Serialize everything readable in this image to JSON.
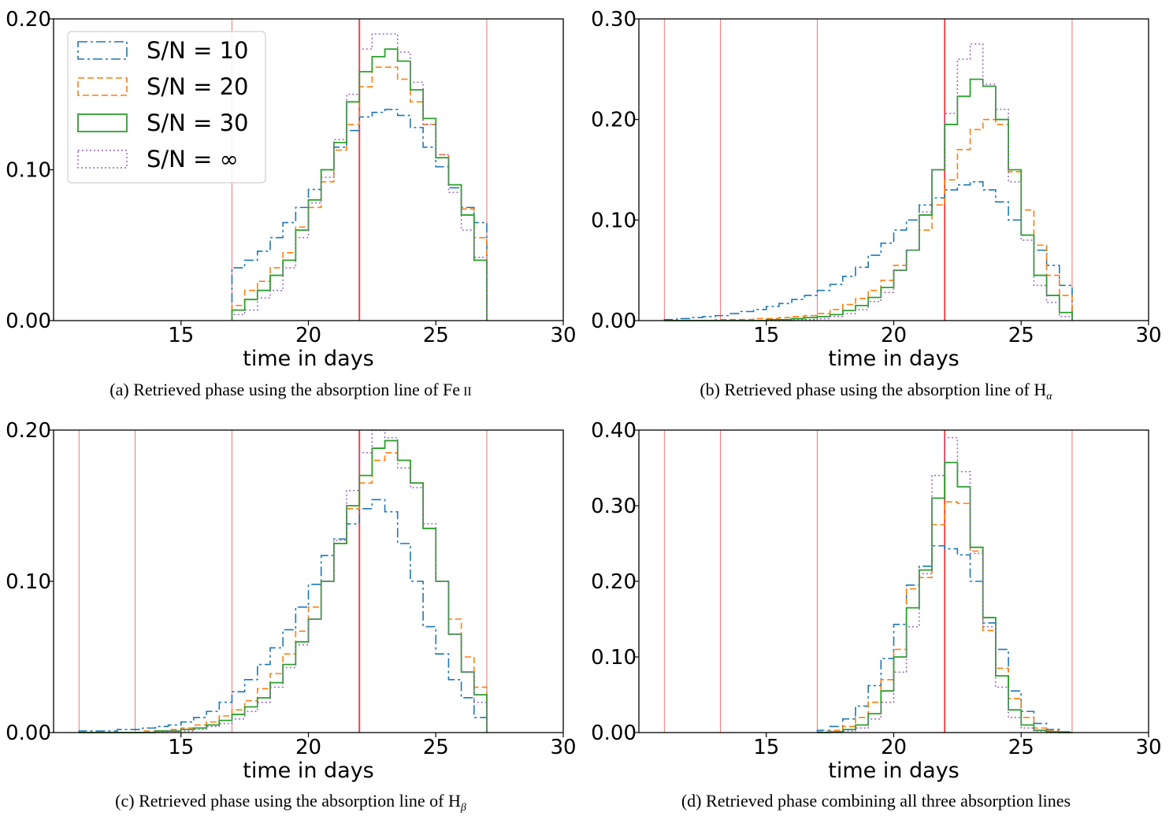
{
  "figure": {
    "captions": [
      {
        "tag": "(a)",
        "text": "Retrieved phase using the absorption line of Fe",
        "suffix": "II",
        "sub": ""
      },
      {
        "tag": "(b)",
        "text": "Retrieved phase using the absorption line of H",
        "suffix": "",
        "sub": "α"
      },
      {
        "tag": "(c)",
        "text": "Retrieved phase using the absorption line of H",
        "suffix": "",
        "sub": "β"
      },
      {
        "tag": "(d)",
        "text": "Retrieved phase combining all three absorption lines",
        "suffix": "",
        "sub": ""
      }
    ]
  },
  "colors": {
    "sn10": "#1f77b4",
    "sn20": "#ff7f0e",
    "sn30": "#2ca02c",
    "sninf": "#9467bd",
    "vline": "#f08080",
    "vline_main": "#e8474a"
  },
  "chart_data": [
    {
      "type": "bar",
      "subtype": "step-histogram",
      "xlabel": "time in days",
      "ylabel": "",
      "xlim": [
        10,
        30
      ],
      "ylim": [
        0,
        0.2
      ],
      "xticks": [
        "15",
        "20",
        "25",
        "30"
      ],
      "yticks": [
        "0.00",
        "0.10",
        "0.20"
      ],
      "legend": {
        "position": "top-left",
        "entries": [
          "S/N = 10",
          "S/N = 20",
          "S/N = 30",
          "S/N = ∞"
        ]
      },
      "vlines": [
        17,
        22,
        27
      ],
      "main_vline": 22,
      "bin_edges": [
        17,
        17.5,
        18,
        18.5,
        19,
        19.5,
        20,
        20.5,
        21,
        21.5,
        22,
        22.5,
        23,
        23.5,
        24,
        24.5,
        25,
        25.5,
        26,
        26.5,
        27
      ],
      "series": [
        {
          "name": "S/N = 10",
          "values": [
            0.035,
            0.04,
            0.046,
            0.055,
            0.065,
            0.075,
            0.087,
            0.1,
            0.115,
            0.126,
            0.135,
            0.138,
            0.14,
            0.136,
            0.128,
            0.115,
            0.102,
            0.088,
            0.075,
            0.065
          ]
        },
        {
          "name": "S/N = 20",
          "values": [
            0.01,
            0.02,
            0.026,
            0.035,
            0.045,
            0.062,
            0.075,
            0.092,
            0.113,
            0.13,
            0.155,
            0.168,
            0.168,
            0.16,
            0.145,
            0.13,
            0.11,
            0.09,
            0.074,
            0.055
          ]
        },
        {
          "name": "S/N = 30",
          "values": [
            0.007,
            0.014,
            0.02,
            0.03,
            0.04,
            0.06,
            0.08,
            0.1,
            0.118,
            0.145,
            0.165,
            0.175,
            0.18,
            0.172,
            0.153,
            0.134,
            0.108,
            0.09,
            0.07,
            0.04
          ]
        },
        {
          "name": "S/N = ∞",
          "values": [
            0.004,
            0.007,
            0.015,
            0.02,
            0.035,
            0.055,
            0.078,
            0.095,
            0.12,
            0.15,
            0.18,
            0.19,
            0.19,
            0.178,
            0.158,
            0.13,
            0.11,
            0.085,
            0.06,
            0.042
          ]
        }
      ]
    },
    {
      "type": "bar",
      "subtype": "step-histogram",
      "xlabel": "time in days",
      "ylabel": "",
      "xlim": [
        10,
        30
      ],
      "ylim": [
        0,
        0.3
      ],
      "xticks": [
        "15",
        "20",
        "25",
        "30"
      ],
      "yticks": [
        "0.00",
        "0.10",
        "0.20",
        "0.30"
      ],
      "vlines": [
        11,
        13.2,
        17,
        22,
        27
      ],
      "main_vline": 22,
      "bin_edges": [
        11,
        11.5,
        12,
        12.5,
        13,
        13.5,
        14,
        14.5,
        15,
        15.5,
        16,
        16.5,
        17,
        17.5,
        18,
        18.5,
        19,
        19.5,
        20,
        20.5,
        21,
        21.5,
        22,
        22.5,
        23,
        23.5,
        24,
        24.5,
        25,
        25.5,
        26,
        26.5,
        27
      ],
      "series": [
        {
          "name": "S/N = 10",
          "values": [
            0.001,
            0.002,
            0.003,
            0.004,
            0.005,
            0.007,
            0.009,
            0.011,
            0.014,
            0.017,
            0.021,
            0.025,
            0.03,
            0.036,
            0.044,
            0.053,
            0.065,
            0.077,
            0.09,
            0.1,
            0.115,
            0.122,
            0.13,
            0.135,
            0.138,
            0.13,
            0.118,
            0.1,
            0.085,
            0.07,
            0.055,
            0.035
          ]
        },
        {
          "name": "S/N = 20",
          "values": [
            0,
            0,
            0,
            0,
            0.001,
            0.001,
            0.001,
            0.002,
            0.002,
            0.003,
            0.004,
            0.005,
            0.007,
            0.011,
            0.016,
            0.022,
            0.03,
            0.04,
            0.055,
            0.07,
            0.09,
            0.115,
            0.14,
            0.17,
            0.19,
            0.2,
            0.195,
            0.148,
            0.11,
            0.075,
            0.045,
            0.025
          ]
        },
        {
          "name": "S/N = 30",
          "values": [
            0,
            0,
            0,
            0,
            0,
            0,
            0,
            0,
            0.001,
            0.001,
            0.002,
            0.003,
            0.004,
            0.006,
            0.01,
            0.015,
            0.023,
            0.033,
            0.05,
            0.07,
            0.105,
            0.15,
            0.195,
            0.223,
            0.24,
            0.233,
            0.2,
            0.15,
            0.085,
            0.045,
            0.025,
            0.008
          ]
        },
        {
          "name": "S/N = ∞",
          "values": [
            0,
            0,
            0,
            0,
            0,
            0,
            0,
            0,
            0,
            0,
            0.001,
            0.001,
            0.002,
            0.004,
            0.007,
            0.011,
            0.019,
            0.028,
            0.05,
            0.07,
            0.108,
            0.15,
            0.206,
            0.26,
            0.275,
            0.235,
            0.21,
            0.138,
            0.08,
            0.035,
            0.018,
            0.004
          ]
        }
      ]
    },
    {
      "type": "bar",
      "subtype": "step-histogram",
      "xlabel": "time in days",
      "ylabel": "",
      "xlim": [
        10,
        30
      ],
      "ylim": [
        0,
        0.2
      ],
      "xticks": [
        "15",
        "20",
        "25",
        "30"
      ],
      "yticks": [
        "0.00",
        "0.10",
        "0.20"
      ],
      "vlines": [
        11,
        13.2,
        17,
        22,
        27
      ],
      "main_vline": 22,
      "bin_edges": [
        11,
        11.5,
        12,
        12.5,
        13,
        13.5,
        14,
        14.5,
        15,
        15.5,
        16,
        16.5,
        17,
        17.5,
        18,
        18.5,
        19,
        19.5,
        20,
        20.5,
        21,
        21.5,
        22,
        22.5,
        23,
        23.5,
        24,
        24.5,
        25,
        25.5,
        26,
        26.5,
        27
      ],
      "series": [
        {
          "name": "S/N = 10",
          "values": [
            0.001,
            0.001,
            0.001,
            0.002,
            0.002,
            0.003,
            0.004,
            0.005,
            0.007,
            0.01,
            0.014,
            0.02,
            0.027,
            0.035,
            0.045,
            0.056,
            0.068,
            0.083,
            0.098,
            0.117,
            0.128,
            0.138,
            0.148,
            0.154,
            0.146,
            0.125,
            0.1,
            0.07,
            0.052,
            0.035,
            0.023,
            0.01
          ]
        },
        {
          "name": "S/N = 20",
          "values": [
            0,
            0,
            0,
            0,
            0,
            0.001,
            0.001,
            0.002,
            0.003,
            0.005,
            0.007,
            0.011,
            0.015,
            0.021,
            0.029,
            0.039,
            0.052,
            0.067,
            0.083,
            0.1,
            0.125,
            0.148,
            0.165,
            0.18,
            0.185,
            0.18,
            0.165,
            0.135,
            0.1,
            0.075,
            0.05,
            0.03
          ]
        },
        {
          "name": "S/N = 30",
          "values": [
            0,
            0,
            0,
            0,
            0,
            0,
            0.001,
            0.001,
            0.002,
            0.003,
            0.005,
            0.008,
            0.012,
            0.017,
            0.023,
            0.033,
            0.045,
            0.06,
            0.075,
            0.1,
            0.125,
            0.15,
            0.17,
            0.188,
            0.193,
            0.18,
            0.165,
            0.135,
            0.1,
            0.065,
            0.04,
            0.025
          ]
        },
        {
          "name": "S/N = ∞",
          "values": [
            0,
            0,
            0,
            0,
            0,
            0,
            0,
            0.001,
            0.001,
            0.002,
            0.004,
            0.006,
            0.009,
            0.014,
            0.02,
            0.03,
            0.043,
            0.058,
            0.075,
            0.1,
            0.127,
            0.16,
            0.185,
            0.2,
            0.195,
            0.175,
            0.162,
            0.138,
            0.1,
            0.065,
            0.04,
            0.02
          ]
        }
      ]
    },
    {
      "type": "bar",
      "subtype": "step-histogram",
      "xlabel": "time in days",
      "ylabel": "",
      "xlim": [
        10,
        30
      ],
      "ylim": [
        0,
        0.4
      ],
      "xticks": [
        "15",
        "20",
        "25",
        "30"
      ],
      "yticks": [
        "0.00",
        "0.10",
        "0.20",
        "0.30",
        "0.40"
      ],
      "vlines": [
        11,
        13.2,
        17,
        22,
        27
      ],
      "main_vline": 22,
      "bin_edges": [
        17,
        17.5,
        18,
        18.5,
        19,
        19.5,
        20,
        20.5,
        21,
        21.5,
        22,
        22.5,
        23,
        23.5,
        24,
        24.5,
        25,
        25.5,
        26,
        26.5,
        27
      ],
      "series": [
        {
          "name": "S/N = 10",
          "values": [
            0.003,
            0.008,
            0.018,
            0.035,
            0.062,
            0.098,
            0.143,
            0.195,
            0.22,
            0.247,
            0.243,
            0.235,
            0.2,
            0.145,
            0.11,
            0.055,
            0.028,
            0.012,
            0.004,
            0.001
          ]
        },
        {
          "name": "S/N = 20",
          "values": [
            0.001,
            0.003,
            0.008,
            0.02,
            0.04,
            0.07,
            0.11,
            0.19,
            0.205,
            0.275,
            0.305,
            0.303,
            0.24,
            0.135,
            0.085,
            0.045,
            0.02,
            0.006,
            0.002,
            0
          ]
        },
        {
          "name": "S/N = 30",
          "values": [
            0,
            0.001,
            0.004,
            0.01,
            0.025,
            0.055,
            0.1,
            0.165,
            0.215,
            0.31,
            0.357,
            0.325,
            0.245,
            0.152,
            0.075,
            0.03,
            0.01,
            0.003,
            0.001,
            0
          ]
        },
        {
          "name": "S/N = ∞",
          "values": [
            0,
            0.001,
            0.002,
            0.006,
            0.018,
            0.04,
            0.08,
            0.14,
            0.21,
            0.34,
            0.39,
            0.345,
            0.237,
            0.14,
            0.06,
            0.02,
            0.006,
            0.002,
            0,
            0
          ]
        }
      ]
    }
  ]
}
